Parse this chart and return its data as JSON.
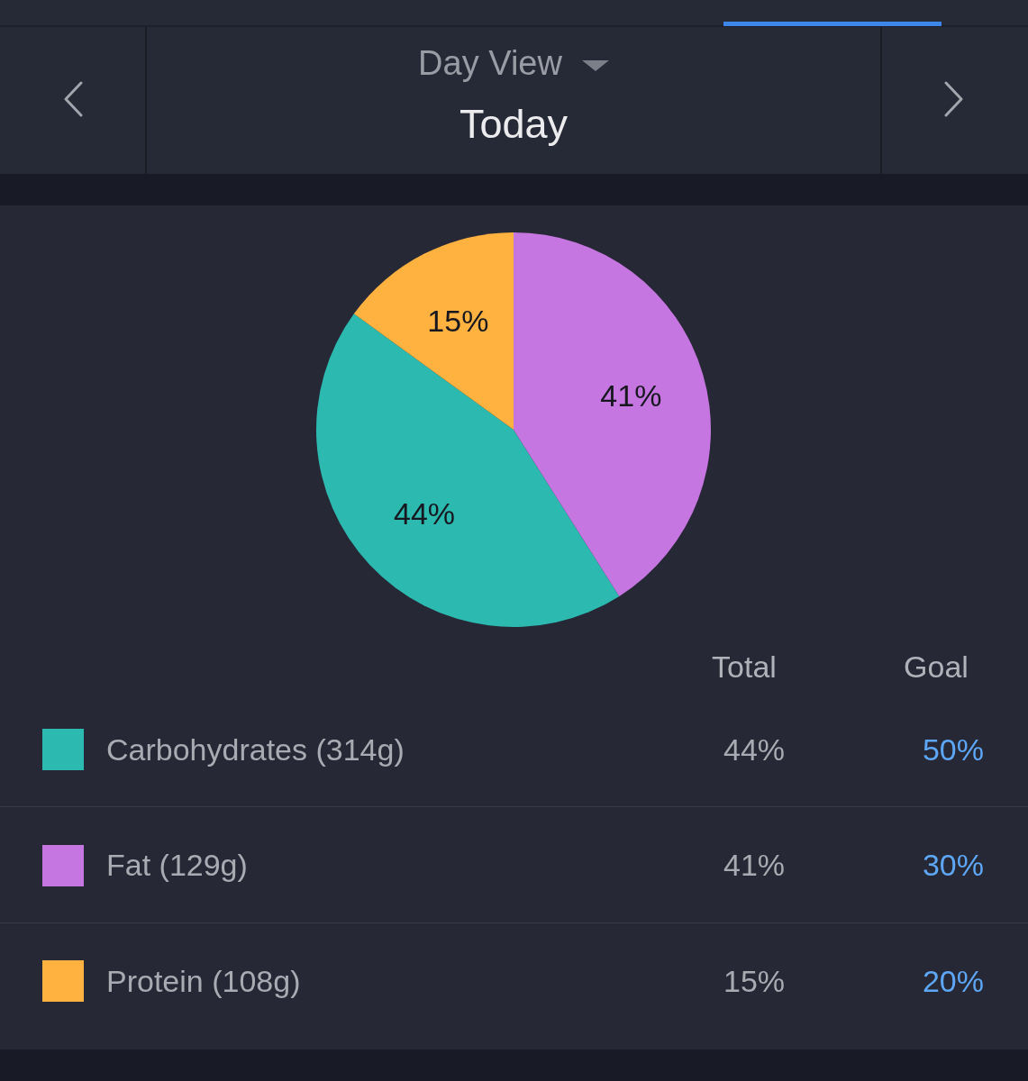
{
  "chart_data": {
    "type": "pie",
    "title": "Today",
    "subtitle": "Day View",
    "categories": [
      "Carbohydrates (314g)",
      "Fat (129g)",
      "Protein (108g)"
    ],
    "values": [
      44,
      41,
      15
    ],
    "colors": [
      "#2cb9b0",
      "#c676e0",
      "#ffb23f"
    ],
    "value_labels": [
      "44%",
      "41%",
      "15%"
    ],
    "legend": "bottom",
    "annotations": [
      "Total",
      "Goal",
      "50%",
      "30%",
      "20%"
    ]
  }
}
